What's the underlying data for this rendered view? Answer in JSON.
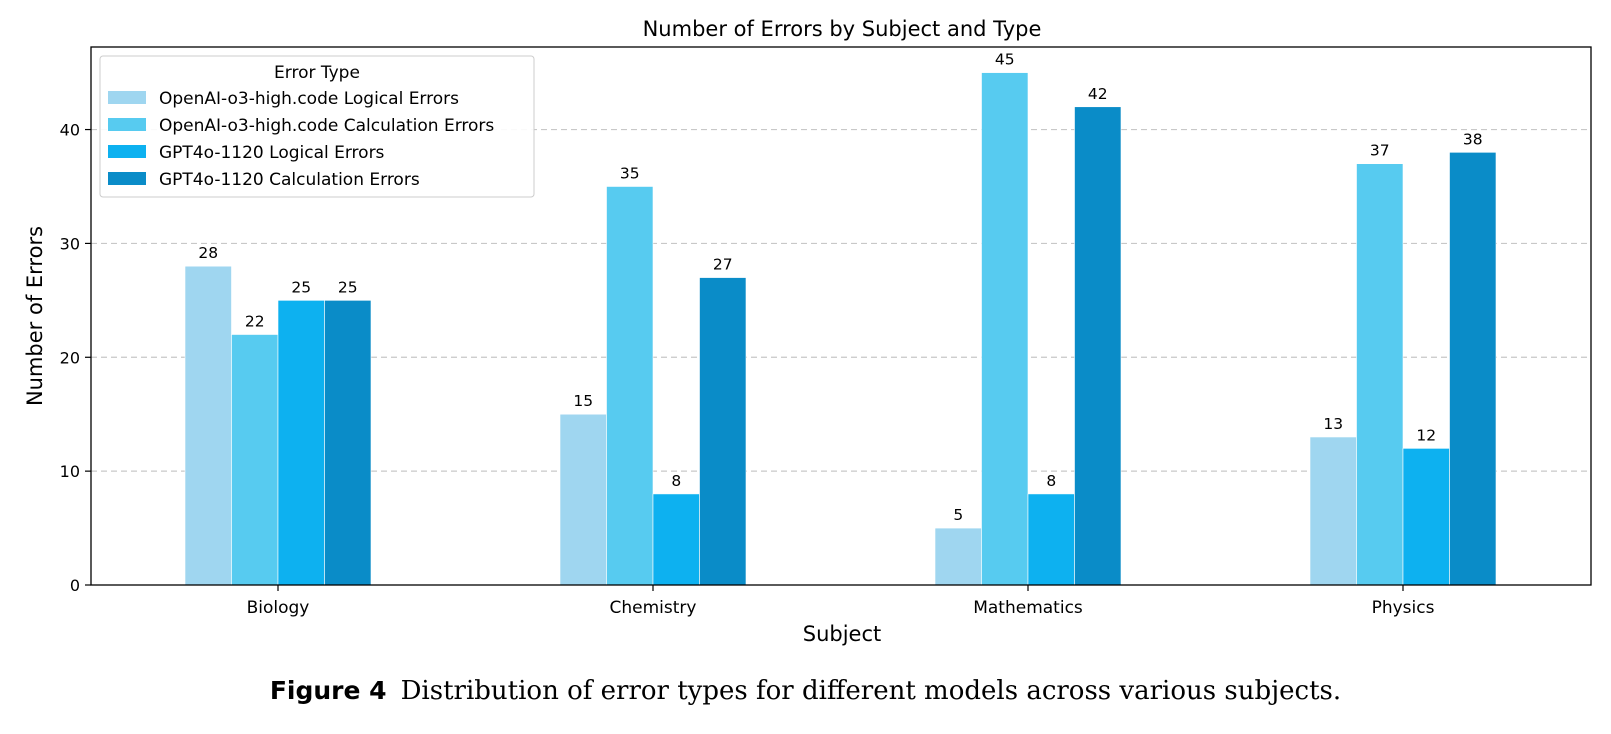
{
  "chart_data": {
    "type": "bar",
    "title": "Number of Errors by Subject and Type",
    "xlabel": "Subject",
    "ylabel": "Number of Errors",
    "categories": [
      "Biology",
      "Chemistry",
      "Mathematics",
      "Physics"
    ],
    "ylim": [
      0,
      47.25
    ],
    "yticks": [
      0,
      10,
      20,
      30,
      40
    ],
    "grid": "y-dashed",
    "legend": {
      "title": "Error Type",
      "placement": "top-left"
    },
    "series": [
      {
        "name": "OpenAI-o3-high.code Logical Errors",
        "color": "#9fd6f0",
        "values": [
          28,
          15,
          5,
          13
        ]
      },
      {
        "name": "OpenAI-o3-high.code Calculation Errors",
        "color": "#57cbf0",
        "values": [
          22,
          35,
          45,
          37
        ]
      },
      {
        "name": "GPT4o-1120 Logical Errors",
        "color": "#0db1f0",
        "values": [
          25,
          8,
          8,
          12
        ]
      },
      {
        "name": "GPT4o-1120 Calculation Errors",
        "color": "#0a8cc8",
        "values": [
          25,
          27,
          42,
          38
        ]
      }
    ]
  },
  "caption": {
    "label": "Figure 4",
    "text": "Distribution of error types for different models across various subjects."
  }
}
